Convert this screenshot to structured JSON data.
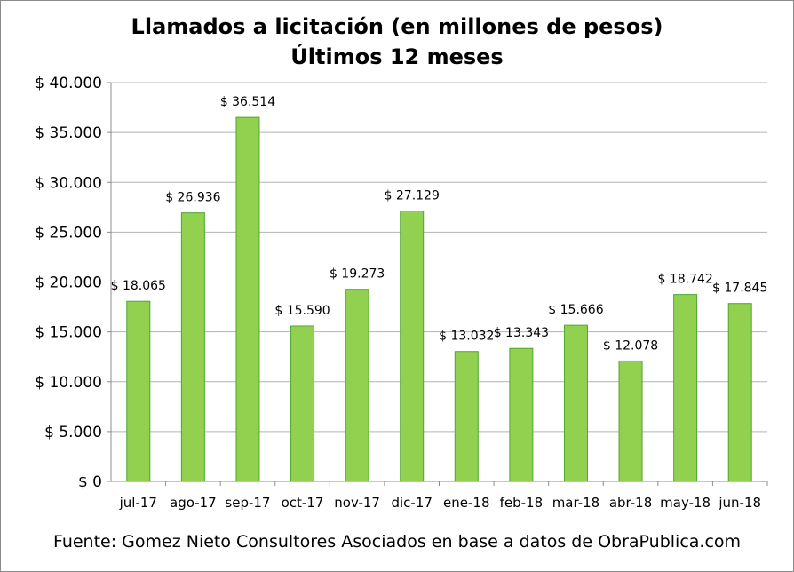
{
  "chart_data": {
    "type": "bar",
    "title": "Llamados a licitación (en millones de pesos)",
    "subtitle": "Últimos 12 meses",
    "categories": [
      "jul-17",
      "ago-17",
      "sep-17",
      "oct-17",
      "nov-17",
      "dic-17",
      "ene-18",
      "feb-18",
      "mar-18",
      "abr-18",
      "may-18",
      "jun-18"
    ],
    "values": [
      18065,
      26936,
      36514,
      15590,
      19273,
      27129,
      13032,
      13343,
      15666,
      12078,
      18742,
      17845
    ],
    "data_labels": [
      "$ 18.065",
      "$ 26.936",
      "$ 36.514",
      "$ 15.590",
      "$ 19.273",
      "$ 27.129",
      "$ 13.032",
      "$ 13.343",
      "$ 15.666",
      "$ 12.078",
      "$ 18.742",
      "$ 17.845"
    ],
    "y_ticks": [
      0,
      5000,
      10000,
      15000,
      20000,
      25000,
      30000,
      35000,
      40000
    ],
    "y_tick_labels": [
      "$ 0",
      "$ 5.000",
      "$ 10.000",
      "$ 15.000",
      "$ 20.000",
      "$ 25.000",
      "$ 30.000",
      "$ 35.000",
      "$ 40.000"
    ],
    "ylim": [
      0,
      40000
    ],
    "xlabel": "",
    "ylabel": "",
    "grid": true,
    "legend": "none",
    "bar_color": "#92d050",
    "bar_border_color": "#4ea72e",
    "grid_color": "#b3b3b3"
  },
  "source_note": "Fuente: Gomez Nieto Consultores Asociados en base a datos de ObraPublica.com"
}
